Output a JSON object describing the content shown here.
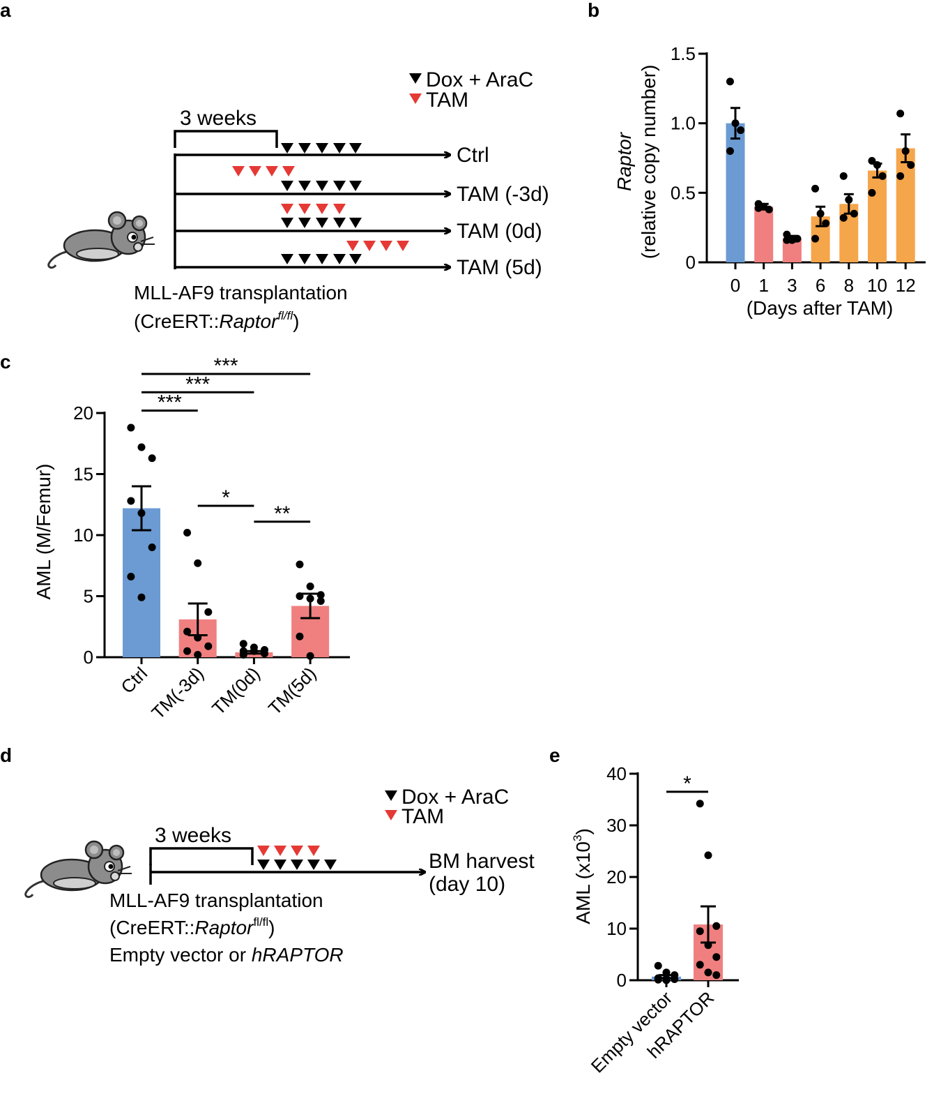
{
  "panel_labels": {
    "a": "a",
    "b": "b",
    "c": "c",
    "d": "d",
    "e": "e"
  },
  "colors": {
    "blue": "#6b9bd2",
    "pink": "#f08080",
    "orange": "#f5a54a",
    "red_triangle": "#e53935",
    "black": "#000000",
    "mouse": "#8c8c8c"
  },
  "schematic_a": {
    "legend": {
      "dox": "Dox + AraC",
      "tam": "TAM"
    },
    "bracket_label": "3 weeks",
    "rows": [
      "Ctrl",
      "TAM (-3d)",
      "TAM (0d)",
      "TAM (5d)"
    ],
    "caption_line1": "MLL-AF9 transplantation",
    "caption_prefix": "(CreERT::",
    "caption_gene": "Raptor",
    "caption_sup": "fl/fl",
    "caption_suffix": ")",
    "icons": [
      "mouse-icon",
      "black-triangle-icon",
      "red-triangle-icon"
    ]
  },
  "schematic_d": {
    "legend": {
      "dox": "Dox + AraC",
      "tam": "TAM"
    },
    "bracket_label": "3 weeks",
    "endpoint_line1": "BM harvest",
    "endpoint_line2": "(day 10)",
    "caption_line1": "MLL-AF9 transplantation",
    "caption_prefix": "(CreERT::",
    "caption_gene": "Raptor",
    "caption_sup": "fl/fl",
    "caption_suffix": ")",
    "caption_line3_prefix": "Empty vector or ",
    "caption_line3_gene": "hRAPTOR"
  },
  "chart_data": [
    {
      "id": "b",
      "type": "bar",
      "categories": [
        "0",
        "1",
        "3",
        "6",
        "8",
        "10",
        "12"
      ],
      "values": [
        1.0,
        0.4,
        0.17,
        0.33,
        0.42,
        0.66,
        0.82
      ],
      "errors": [
        0.11,
        0.02,
        0.02,
        0.07,
        0.07,
        0.05,
        0.1
      ],
      "points": [
        [
          1.3,
          1.0,
          0.95,
          0.8
        ],
        [
          0.42,
          0.4,
          0.38,
          0.39
        ],
        [
          0.2,
          0.16,
          0.17,
          0.16
        ],
        [
          0.53,
          0.35,
          0.28,
          0.17
        ],
        [
          0.62,
          0.45,
          0.35,
          0.32
        ],
        [
          0.73,
          0.7,
          0.62,
          0.5
        ],
        [
          1.07,
          0.8,
          0.7,
          0.62
        ]
      ],
      "bar_colors": [
        "#6b9bd2",
        "#f08080",
        "#f08080",
        "#f5a54a",
        "#f5a54a",
        "#f5a54a",
        "#f5a54a"
      ],
      "ylabel_italic": "Raptor",
      "ylabel": "(relative copy number)",
      "xlabel": "(Days after TAM)",
      "ylim": [
        0,
        1.5
      ],
      "yticks": [
        "0",
        "0.5",
        "1.0",
        "1.5"
      ],
      "ytick_values": [
        0,
        0.5,
        1.0,
        1.5
      ]
    },
    {
      "id": "c",
      "type": "bar",
      "categories": [
        "Ctrl",
        "TM(-3d)",
        "TM(0d)",
        "TM(5d)"
      ],
      "values": [
        12.2,
        3.1,
        0.4,
        4.2
      ],
      "errors": [
        1.8,
        1.3,
        0.1,
        1.0
      ],
      "points": [
        [
          18.8,
          17.2,
          16.3,
          12.8,
          11.8,
          9.0,
          6.6,
          4.9
        ],
        [
          10.2,
          7.7,
          3.7,
          2.1,
          1.6,
          0.9,
          0.5,
          0.2
        ],
        [
          1.1,
          0.8,
          0.6,
          0.5,
          0.5,
          0.3,
          0.2
        ],
        [
          7.6,
          5.8,
          5.1,
          5.0,
          4.8,
          4.6,
          1.7,
          0.1
        ]
      ],
      "bar_colors": [
        "#6b9bd2",
        "#f08080",
        "#f08080",
        "#f08080"
      ],
      "ylabel": "AML (M/Femur)",
      "ylim": [
        0,
        20
      ],
      "yticks": [
        "0",
        "5",
        "10",
        "15",
        "20"
      ],
      "ytick_values": [
        0,
        5,
        10,
        15,
        20
      ],
      "significance": [
        {
          "from": 0,
          "to": 1,
          "label": "***",
          "y": 20.2
        },
        {
          "from": 0,
          "to": 2,
          "label": "***",
          "y": 21.7
        },
        {
          "from": 0,
          "to": 3,
          "label": "***",
          "y": 23.2
        },
        {
          "from": 1,
          "to": 2,
          "label": "*",
          "y": 12.4
        },
        {
          "from": 2,
          "to": 3,
          "label": "**",
          "y": 11.1
        }
      ]
    },
    {
      "id": "e",
      "type": "bar",
      "categories": [
        "Empty vector",
        "hRAPTOR"
      ],
      "values": [
        0.7,
        10.8
      ],
      "errors": [
        0.3,
        3.5
      ],
      "points": [
        [
          2.8,
          1.5,
          1.0,
          0.4,
          0.3,
          0.2,
          0.1,
          0.0
        ],
        [
          34.2,
          24.2,
          10.5,
          9.5,
          6.8,
          4.5,
          3.0,
          1.5,
          1.0
        ]
      ],
      "bar_colors": [
        "#6b9bd2",
        "#f08080"
      ],
      "ylabel": "AML (x10",
      "ylabel_sup": "3",
      "ylabel_suffix": ")",
      "ylim": [
        0,
        40
      ],
      "yticks": [
        "0",
        "10",
        "20",
        "30",
        "40"
      ],
      "ytick_values": [
        0,
        10,
        20,
        30,
        40
      ],
      "significance": [
        {
          "from": 0,
          "to": 1,
          "label": "*",
          "y": 36.5
        }
      ]
    }
  ]
}
